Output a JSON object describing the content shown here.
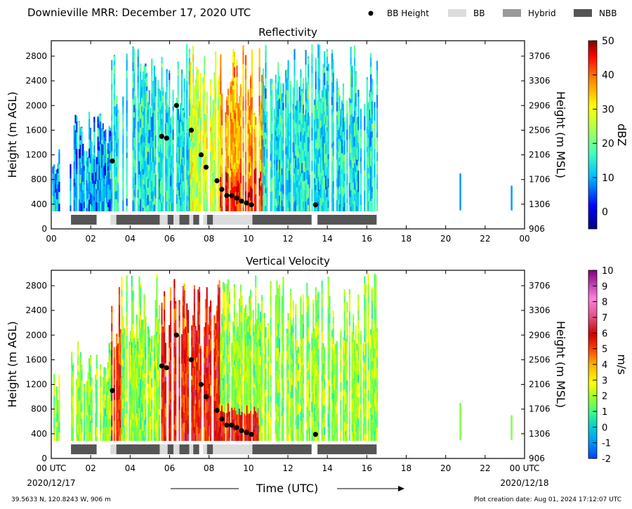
{
  "figure": {
    "title": "Downieville MRR:  December 17, 2020 UTC",
    "location": "39.5633 N, 120.8243 W, 906 m",
    "created": "Plot creation date: Aug 01, 2024 17:12:07 UTC",
    "xlabel": "Time (UTC)",
    "start_date": "2020/12/17",
    "end_date": "2020/12/18",
    "x_tick_labels": [
      "00 UTC",
      "02",
      "04",
      "06",
      "08",
      "10",
      "12",
      "14",
      "16",
      "18",
      "20",
      "22",
      "00 UTC"
    ]
  },
  "legend": [
    {
      "label": "BB Height",
      "symbol": "dot",
      "color": "#000000"
    },
    {
      "label": "BB",
      "symbol": "box",
      "color": "#dcdcdc"
    },
    {
      "label": "Hybrid",
      "symbol": "box",
      "color": "#999999"
    },
    {
      "label": "NBB",
      "symbol": "box",
      "color": "#555555"
    }
  ],
  "chart_data": [
    {
      "type": "heatmap",
      "title": "Reflectivity",
      "ylabel": "Height (m AGL)",
      "y2label": "Height (m MSL)",
      "xlim": [
        0,
        24
      ],
      "ylim": [
        0,
        3050
      ],
      "y_ticks": [
        0,
        400,
        800,
        1200,
        1600,
        2000,
        2400,
        2800
      ],
      "y2_ticks": [
        906,
        1306,
        1706,
        2106,
        2506,
        2906,
        3306,
        3706
      ],
      "x_tick_labels": [
        "00",
        "02",
        "04",
        "06",
        "08",
        "10",
        "12",
        "14",
        "16",
        "18",
        "20",
        "22",
        "00"
      ],
      "colorbar": {
        "label": "dBZ",
        "min": -5,
        "max": 50,
        "ticks": [
          0,
          10,
          20,
          30,
          40,
          50
        ]
      },
      "bb_height": [
        [
          3.1,
          1100
        ],
        [
          5.6,
          1500
        ],
        [
          5.85,
          1470
        ],
        [
          6.35,
          2000
        ],
        [
          7.1,
          1600
        ],
        [
          7.6,
          1200
        ],
        [
          7.85,
          1000
        ],
        [
          8.4,
          780
        ],
        [
          8.65,
          640
        ],
        [
          8.9,
          540
        ],
        [
          9.15,
          540
        ],
        [
          9.4,
          500
        ],
        [
          9.65,
          450
        ],
        [
          9.9,
          420
        ],
        [
          10.15,
          390
        ],
        [
          13.4,
          390
        ]
      ]
    },
    {
      "type": "heatmap",
      "title": "Vertical Velocity",
      "ylabel": "Height (m AGL)",
      "y2label": "Height (m MSL)",
      "xlim": [
        0,
        24
      ],
      "ylim": [
        0,
        3050
      ],
      "y_ticks": [
        0,
        400,
        800,
        1200,
        1600,
        2000,
        2400,
        2800
      ],
      "y2_ticks": [
        906,
        1306,
        1706,
        2106,
        2506,
        2906,
        3306,
        3706
      ],
      "colorbar": {
        "label": "m/s",
        "min": -2,
        "max": 10,
        "ticks": [
          -2,
          -1,
          0,
          1,
          2,
          3,
          4,
          5,
          6,
          7,
          8,
          9,
          10
        ]
      },
      "bb_height": [
        [
          3.1,
          1100
        ],
        [
          5.6,
          1500
        ],
        [
          5.85,
          1470
        ],
        [
          6.35,
          2000
        ],
        [
          7.1,
          1600
        ],
        [
          7.6,
          1200
        ],
        [
          7.85,
          1000
        ],
        [
          8.4,
          780
        ],
        [
          8.65,
          640
        ],
        [
          8.9,
          540
        ],
        [
          9.15,
          540
        ],
        [
          9.4,
          500
        ],
        [
          9.65,
          450
        ],
        [
          9.9,
          420
        ],
        [
          10.15,
          390
        ],
        [
          13.4,
          390
        ]
      ]
    }
  ],
  "bb_segments": [
    {
      "start": 1.0,
      "end": 2.3,
      "type": "NBB"
    },
    {
      "start": 3.0,
      "end": 3.3,
      "type": "BB"
    },
    {
      "start": 3.3,
      "end": 5.5,
      "type": "NBB"
    },
    {
      "start": 5.5,
      "end": 5.9,
      "type": "BB"
    },
    {
      "start": 5.9,
      "end": 6.2,
      "type": "NBB"
    },
    {
      "start": 6.2,
      "end": 6.5,
      "type": "BB"
    },
    {
      "start": 6.5,
      "end": 7.0,
      "type": "NBB"
    },
    {
      "start": 7.0,
      "end": 7.2,
      "type": "BB"
    },
    {
      "start": 7.2,
      "end": 7.5,
      "type": "NBB"
    },
    {
      "start": 7.7,
      "end": 7.9,
      "type": "BB"
    },
    {
      "start": 7.9,
      "end": 8.2,
      "type": "NBB"
    },
    {
      "start": 8.2,
      "end": 10.2,
      "type": "BB"
    },
    {
      "start": 10.2,
      "end": 13.2,
      "type": "NBB"
    },
    {
      "start": 13.5,
      "end": 16.5,
      "type": "NBB"
    }
  ]
}
